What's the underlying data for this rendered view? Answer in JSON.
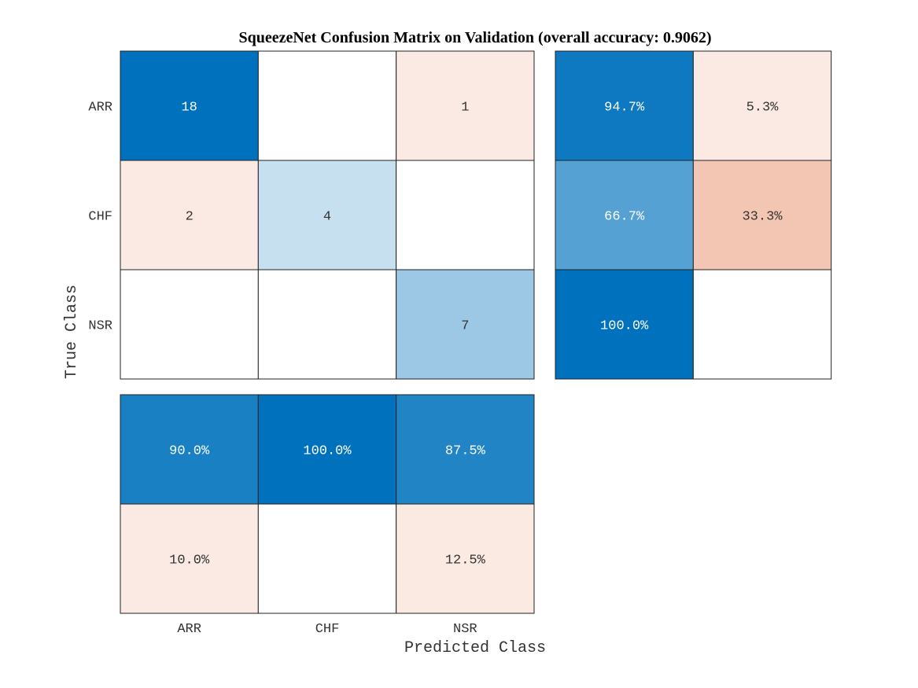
{
  "chart_data": {
    "type": "heatmap",
    "title": "SqueezeNet Confusion Matrix on Validation (overall accuracy: 0.9062)",
    "xlabel": "Predicted Class",
    "ylabel": "True Class",
    "classes": [
      "ARR",
      "CHF",
      "NSR"
    ],
    "matrix": [
      [
        18,
        0,
        1
      ],
      [
        2,
        4,
        0
      ],
      [
        0,
        0,
        7
      ]
    ],
    "row_summary": [
      [
        "94.7%",
        "5.3%"
      ],
      [
        "66.7%",
        "33.3%"
      ],
      [
        "100.0%",
        ""
      ]
    ],
    "column_summary": [
      [
        "90.0%",
        "100.0%",
        "87.5%"
      ],
      [
        "10.0%",
        "",
        "12.5%"
      ]
    ],
    "colors": {
      "correct": "#0072bd",
      "incorrect": "#d95319",
      "border": "#222222",
      "background": "#ffffff"
    }
  }
}
